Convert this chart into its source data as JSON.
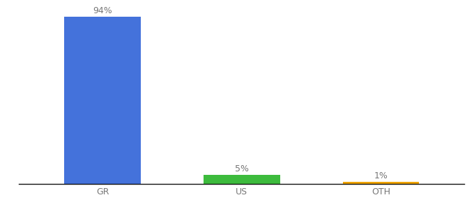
{
  "categories": [
    "GR",
    "US",
    "OTH"
  ],
  "values": [
    94,
    5,
    1
  ],
  "bar_colors": [
    "#4472db",
    "#3dbb3d",
    "#f0a500"
  ],
  "labels": [
    "94%",
    "5%",
    "1%"
  ],
  "ylim": [
    0,
    100
  ],
  "background_color": "#ffffff",
  "label_fontsize": 9,
  "tick_fontsize": 9,
  "bar_width": 0.55
}
